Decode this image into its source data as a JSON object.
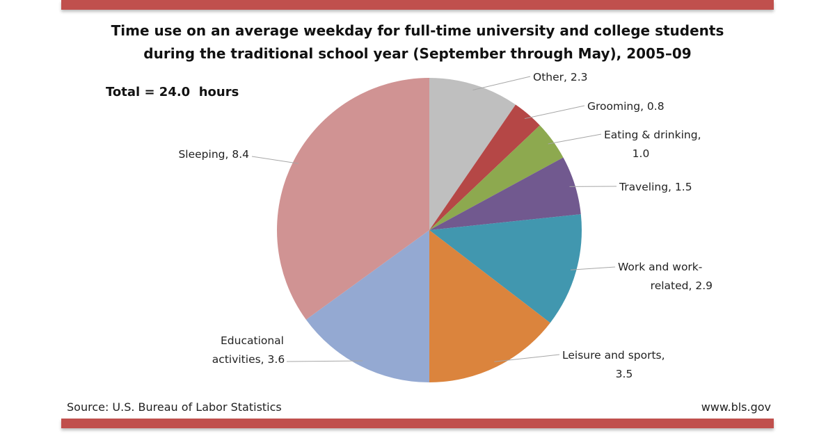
{
  "chart_data": {
    "type": "pie",
    "title": "Time use on an average weekday for full-time university and college students during the traditional school year (September through May), 2005–09",
    "title_lines": [
      "Time use on an average weekday for full-time university and college students",
      "during the traditional school year (September through May), 2005–09"
    ],
    "annotation": "Total = 24.0  hours",
    "unit": "hours",
    "slices": [
      {
        "name": "Other",
        "value": 2.3,
        "label_lines": [
          "Other, 2.3"
        ],
        "color": "#BFBFBF"
      },
      {
        "name": "Grooming",
        "value": 0.8,
        "label_lines": [
          "Grooming, 0.8"
        ],
        "color": "#B54746"
      },
      {
        "name": "Eating & drinking",
        "value": 1.0,
        "label_lines": [
          "Eating & drinking,",
          "1.0"
        ],
        "color": "#8DA94F"
      },
      {
        "name": "Traveling",
        "value": 1.5,
        "label_lines": [
          "Traveling, 1.5"
        ],
        "color": "#71598F"
      },
      {
        "name": "Work and work-related",
        "value": 2.9,
        "label_lines": [
          "Work and work-",
          "related, 2.9"
        ],
        "color": "#4197AF"
      },
      {
        "name": "Leisure and sports",
        "value": 3.5,
        "label_lines": [
          "Leisure and sports,",
          "3.5"
        ],
        "color": "#DB843D"
      },
      {
        "name": "Educational activities",
        "value": 3.6,
        "label_lines": [
          "Educational",
          "activities, 3.6"
        ],
        "color": "#94A9D2"
      },
      {
        "name": "Sleeping",
        "value": 8.4,
        "label_lines": [
          "Sleeping, 8.4"
        ],
        "color": "#D09393"
      }
    ]
  },
  "footer": {
    "source": "Source: U.S. Bureau of Labor Statistics",
    "site": "www.bls.gov"
  },
  "colors": {
    "bar": "#C0504D"
  }
}
